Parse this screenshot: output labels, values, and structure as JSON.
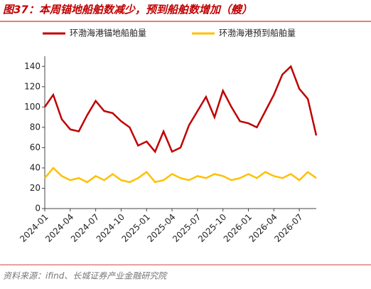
{
  "chart_data": {
    "type": "line",
    "title": "图37：本周锚地船舶数减少，预到船舶数增加（艘）",
    "source": "资料来源：ifind、长城证券产业金融研究院",
    "x": [
      "2024-01",
      "2024-02",
      "2024-03",
      "2024-04",
      "2024-05",
      "2024-06",
      "2024-07",
      "2024-08",
      "2024-09",
      "2024-10",
      "2024-11",
      "2024-12",
      "2025-01",
      "2025-02",
      "2025-03",
      "2025-04",
      "2025-05",
      "2025-06",
      "2025-07",
      "2025-08",
      "2025-09",
      "2025-10",
      "2025-11",
      "2025-12",
      "2026-01",
      "2026-02",
      "2026-03",
      "2026-04",
      "2026-05",
      "2026-06",
      "2026-07",
      "2026-08",
      "2026-09"
    ],
    "series": [
      {
        "name": "环渤海港锚地船舶量",
        "color": "#c00000",
        "values": [
          100,
          112,
          88,
          78,
          76,
          92,
          106,
          96,
          94,
          86,
          80,
          62,
          66,
          56,
          76,
          56,
          60,
          82,
          96,
          110,
          90,
          116,
          100,
          86,
          84,
          80,
          96,
          112,
          132,
          140,
          118,
          108,
          72
        ]
      },
      {
        "name": "环渤海港预到船舶量",
        "color": "#ffc000",
        "values": [
          30,
          40,
          32,
          28,
          30,
          26,
          32,
          28,
          34,
          28,
          26,
          30,
          36,
          26,
          28,
          34,
          30,
          28,
          32,
          30,
          34,
          32,
          28,
          30,
          34,
          30,
          36,
          32,
          30,
          34,
          28,
          36,
          30
        ]
      }
    ],
    "xlim": [
      "2024-01",
      "2026-09"
    ],
    "xticks": [
      "2024-01",
      "2024-04",
      "2024-07",
      "2024-10",
      "2025-01",
      "2025-04",
      "2025-07",
      "2025-10",
      "2026-01",
      "2026-04",
      "2026-07"
    ],
    "ylim": [
      0,
      150
    ],
    "yticks": [
      0,
      20,
      40,
      60,
      80,
      100,
      120,
      140
    ],
    "legend": "top"
  }
}
